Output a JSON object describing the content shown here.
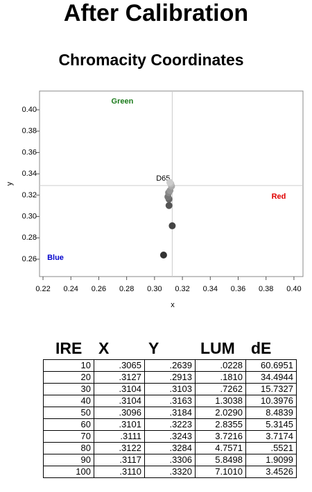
{
  "title": "After Calibration",
  "chart_data": {
    "type": "scatter",
    "title": "Chromacity Coordinates",
    "x_label": "x",
    "y_label": "y",
    "xlim": [
      0.2175,
      0.4065
    ],
    "ylim": [
      0.2437,
      0.4176
    ],
    "xticks": [
      0.22,
      0.24,
      0.26,
      0.28,
      {
        "value": 0.3,
        "label": "0.30"
      },
      0.32,
      0.34,
      0.36,
      0.38,
      {
        "value": 0.4,
        "label": "0.40"
      }
    ],
    "yticks": [
      0.26,
      0.28,
      {
        "value": 0.3,
        "label": "0.30"
      },
      0.32,
      0.34,
      0.36,
      0.38,
      {
        "value": 0.4,
        "label": "0.40"
      }
    ],
    "series": [
      {
        "x": [
          0.3065,
          0.3127,
          0.3104,
          0.3104,
          0.3096,
          0.3101,
          0.3111,
          0.3122,
          0.3117,
          0.311
        ],
        "values": [
          0.2639,
          0.2913,
          0.3103,
          0.3163,
          0.3184,
          0.3223,
          0.3243,
          0.3284,
          0.3306,
          0.332
        ],
        "colors": [
          "#333333",
          "#444444",
          "#555555",
          "#666666",
          "#777777",
          "#888888",
          "#999999",
          "#aaaaaa",
          "#bbbbbb",
          "#cccccc"
        ]
      }
    ],
    "reference": {
      "label": "D65",
      "x": 0.3127,
      "y": 0.329,
      "color": "#cccccc"
    },
    "annotations": [
      {
        "text": "Green",
        "color": "#1a7a1a"
      },
      {
        "text": "Red",
        "color": "#e00000"
      },
      {
        "text": "Blue",
        "color": "#0000cc"
      }
    ]
  },
  "table": {
    "header": [
      "IRE",
      "X",
      "Y",
      "LUM",
      "dE"
    ],
    "rows": [
      [
        "10",
        ".3065",
        ".2639",
        ".0228",
        "60.6951"
      ],
      [
        "20",
        ".3127",
        ".2913",
        ".1810",
        "34.4944"
      ],
      [
        "30",
        ".3104",
        ".3103",
        ".7262",
        "15.7327"
      ],
      [
        "40",
        ".3104",
        ".3163",
        "1.3038",
        "10.3976"
      ],
      [
        "50",
        ".3096",
        ".3184",
        "2.0290",
        "8.4839"
      ],
      [
        "60",
        ".3101",
        ".3223",
        "2.8355",
        "5.3145"
      ],
      [
        "70",
        ".3111",
        ".3243",
        "3.7216",
        "3.7174"
      ],
      [
        "80",
        ".3122",
        ".3284",
        "4.7571",
        ".5521"
      ],
      [
        "90",
        ".3117",
        ".3306",
        "5.8498",
        "1.9099"
      ],
      [
        "100",
        ".3110",
        ".3320",
        "7.1010",
        "3.4526"
      ]
    ]
  }
}
